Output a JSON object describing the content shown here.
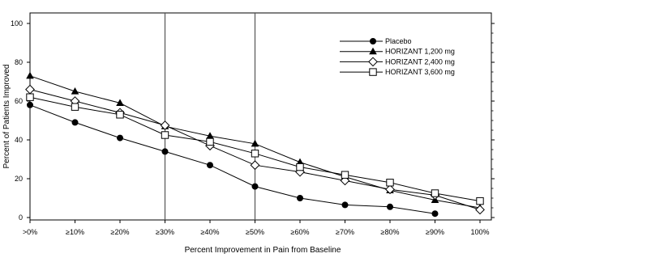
{
  "chart_data": {
    "type": "line",
    "title": "",
    "xlabel": "Percent Improvement in Pain from Baseline",
    "ylabel": "Percent of Patients Improved",
    "categories": [
      ">0%",
      "≥10%",
      "≥20%",
      "≥30%",
      "≥40%",
      "≥50%",
      "≥60%",
      "≥70%",
      "≥80%",
      "≥90%",
      "100%"
    ],
    "ylim": [
      0,
      100
    ],
    "yticks": [
      0,
      20,
      40,
      60,
      80,
      100
    ],
    "reference_lines_at_categories": [
      "≥30%",
      "≥50%"
    ],
    "grid": false,
    "legend_position": "top-right",
    "series": [
      {
        "name": "Placebo",
        "marker": "filled-circle",
        "values": [
          58,
          49,
          41,
          34,
          27,
          16,
          10,
          6.5,
          5.5,
          2,
          null
        ]
      },
      {
        "name": "HORIZANT 1,200 mg",
        "marker": "filled-triangle",
        "values": [
          73,
          65,
          59,
          47,
          42,
          38,
          28.5,
          21,
          14,
          9,
          5
        ]
      },
      {
        "name": "HORIZANT 2,400 mg",
        "marker": "open-diamond",
        "values": [
          66,
          60,
          54,
          47.5,
          37,
          27,
          23.5,
          19,
          14.5,
          11.5,
          4
        ]
      },
      {
        "name": "HORIZANT 3,600 mg",
        "marker": "open-square",
        "values": [
          62,
          57,
          53,
          42.5,
          39,
          33,
          26,
          22,
          18,
          12.5,
          8.5
        ]
      }
    ]
  }
}
